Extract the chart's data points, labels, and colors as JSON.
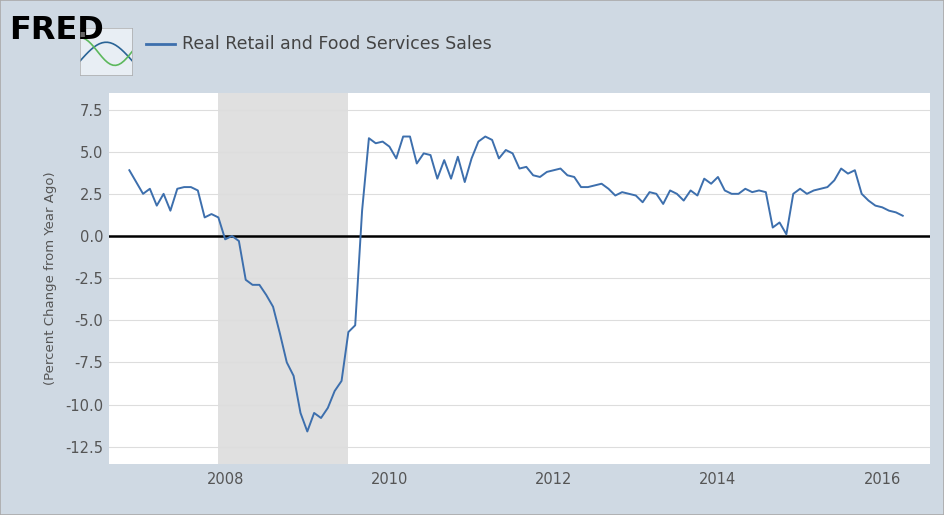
{
  "title": "Real Retail and Food Services Sales",
  "ylabel": "(Percent Change from Year Ago)",
  "line_color": "#3d6fad",
  "background_color": "#cfd9e3",
  "plot_background": "#ffffff",
  "recession_color": "#e0e0e0",
  "recession_start": 2007.917,
  "recession_end": 2009.5,
  "ylim": [
    -13.5,
    8.5
  ],
  "yticks": [
    -12.5,
    -10.0,
    -7.5,
    -5.0,
    -2.5,
    0.0,
    2.5,
    5.0,
    7.5
  ],
  "xlim_start": 2006.58,
  "xlim_end": 2016.58,
  "xticks": [
    2008,
    2010,
    2012,
    2014,
    2016
  ],
  "data": [
    [
      2006.833,
      3.9
    ],
    [
      2007.0,
      2.5
    ],
    [
      2007.083,
      2.8
    ],
    [
      2007.167,
      1.8
    ],
    [
      2007.25,
      2.5
    ],
    [
      2007.333,
      1.5
    ],
    [
      2007.417,
      2.8
    ],
    [
      2007.5,
      2.9
    ],
    [
      2007.583,
      2.9
    ],
    [
      2007.667,
      2.7
    ],
    [
      2007.75,
      1.1
    ],
    [
      2007.833,
      1.3
    ],
    [
      2007.917,
      1.1
    ],
    [
      2008.0,
      -0.2
    ],
    [
      2008.083,
      0.0
    ],
    [
      2008.167,
      -0.3
    ],
    [
      2008.25,
      -2.6
    ],
    [
      2008.333,
      -2.9
    ],
    [
      2008.417,
      -2.9
    ],
    [
      2008.5,
      -3.5
    ],
    [
      2008.583,
      -4.2
    ],
    [
      2008.667,
      -5.8
    ],
    [
      2008.75,
      -7.5
    ],
    [
      2008.833,
      -8.3
    ],
    [
      2008.917,
      -10.5
    ],
    [
      2009.0,
      -11.6
    ],
    [
      2009.083,
      -10.5
    ],
    [
      2009.167,
      -10.8
    ],
    [
      2009.25,
      -10.2
    ],
    [
      2009.333,
      -9.2
    ],
    [
      2009.417,
      -8.6
    ],
    [
      2009.5,
      -5.7
    ],
    [
      2009.583,
      -5.3
    ],
    [
      2009.667,
      1.5
    ],
    [
      2009.75,
      5.8
    ],
    [
      2009.833,
      5.5
    ],
    [
      2009.917,
      5.6
    ],
    [
      2010.0,
      5.3
    ],
    [
      2010.083,
      4.6
    ],
    [
      2010.167,
      5.9
    ],
    [
      2010.25,
      5.9
    ],
    [
      2010.333,
      4.3
    ],
    [
      2010.417,
      4.9
    ],
    [
      2010.5,
      4.8
    ],
    [
      2010.583,
      3.4
    ],
    [
      2010.667,
      4.5
    ],
    [
      2010.75,
      3.4
    ],
    [
      2010.833,
      4.7
    ],
    [
      2010.917,
      3.2
    ],
    [
      2011.0,
      4.6
    ],
    [
      2011.083,
      5.6
    ],
    [
      2011.167,
      5.9
    ],
    [
      2011.25,
      5.7
    ],
    [
      2011.333,
      4.6
    ],
    [
      2011.417,
      5.1
    ],
    [
      2011.5,
      4.9
    ],
    [
      2011.583,
      4.0
    ],
    [
      2011.667,
      4.1
    ],
    [
      2011.75,
      3.6
    ],
    [
      2011.833,
      3.5
    ],
    [
      2011.917,
      3.8
    ],
    [
      2012.0,
      3.9
    ],
    [
      2012.083,
      4.0
    ],
    [
      2012.167,
      3.6
    ],
    [
      2012.25,
      3.5
    ],
    [
      2012.333,
      2.9
    ],
    [
      2012.417,
      2.9
    ],
    [
      2012.5,
      3.0
    ],
    [
      2012.583,
      3.1
    ],
    [
      2012.667,
      2.8
    ],
    [
      2012.75,
      2.4
    ],
    [
      2012.833,
      2.6
    ],
    [
      2012.917,
      2.5
    ],
    [
      2013.0,
      2.4
    ],
    [
      2013.083,
      2.0
    ],
    [
      2013.167,
      2.6
    ],
    [
      2013.25,
      2.5
    ],
    [
      2013.333,
      1.9
    ],
    [
      2013.417,
      2.7
    ],
    [
      2013.5,
      2.5
    ],
    [
      2013.583,
      2.1
    ],
    [
      2013.667,
      2.7
    ],
    [
      2013.75,
      2.4
    ],
    [
      2013.833,
      3.4
    ],
    [
      2013.917,
      3.1
    ],
    [
      2014.0,
      3.5
    ],
    [
      2014.083,
      2.7
    ],
    [
      2014.167,
      2.5
    ],
    [
      2014.25,
      2.5
    ],
    [
      2014.333,
      2.8
    ],
    [
      2014.417,
      2.6
    ],
    [
      2014.5,
      2.7
    ],
    [
      2014.583,
      2.6
    ],
    [
      2014.667,
      0.5
    ],
    [
      2014.75,
      0.8
    ],
    [
      2014.833,
      0.1
    ],
    [
      2014.917,
      2.5
    ],
    [
      2015.0,
      2.8
    ],
    [
      2015.083,
      2.5
    ],
    [
      2015.167,
      2.7
    ],
    [
      2015.25,
      2.8
    ],
    [
      2015.333,
      2.9
    ],
    [
      2015.417,
      3.3
    ],
    [
      2015.5,
      4.0
    ],
    [
      2015.583,
      3.7
    ],
    [
      2015.667,
      3.9
    ],
    [
      2015.75,
      2.5
    ],
    [
      2015.833,
      2.1
    ],
    [
      2015.917,
      1.8
    ],
    [
      2016.0,
      1.7
    ],
    [
      2016.083,
      1.5
    ],
    [
      2016.167,
      1.4
    ],
    [
      2016.25,
      1.2
    ]
  ]
}
